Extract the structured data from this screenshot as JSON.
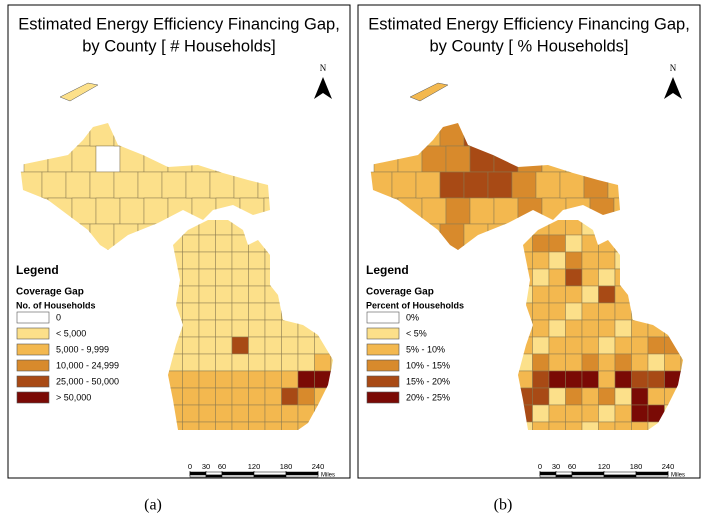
{
  "panels": [
    {
      "title_lines": [
        "Estimated Energy Efficiency Financing Gap,",
        "by County [ # Households]"
      ],
      "north": "N",
      "legend": {
        "title": "Legend",
        "subtitle": "Coverage Gap",
        "heading": "No. of Households",
        "items": [
          {
            "label": "0",
            "color": "#ffffff"
          },
          {
            "label": "< 5,000",
            "color": "#fce08a"
          },
          {
            "label": "5,000 - 9,999",
            "color": "#f3b84f"
          },
          {
            "label": "10,000 - 24,999",
            "color": "#d88a2c"
          },
          {
            "label": "25,000 - 50,000",
            "color": "#a84a15"
          },
          {
            "label": "> 50,000",
            "color": "#7a0a05"
          }
        ]
      },
      "scale": {
        "ticks": [
          0,
          30,
          60,
          120,
          180,
          240
        ],
        "unit": "Miles"
      },
      "caption": "(a)"
    },
    {
      "title_lines": [
        "Estimated Energy Efficiency Financing Gap,",
        "by County [ % Households]"
      ],
      "north": "N",
      "legend": {
        "title": "Legend",
        "subtitle": "Coverage Gap",
        "heading": "Percent of Households",
        "items": [
          {
            "label": "0%",
            "color": "#ffffff"
          },
          {
            "label": "< 5%",
            "color": "#fce08a"
          },
          {
            "label": "5% - 10%",
            "color": "#f3b84f"
          },
          {
            "label": "10% - 15%",
            "color": "#d88a2c"
          },
          {
            "label": "15% - 20%",
            "color": "#a84a15"
          },
          {
            "label": "20% - 25%",
            "color": "#7a0a05"
          }
        ]
      },
      "scale": {
        "ticks": [
          0,
          30,
          60,
          120,
          180,
          240
        ],
        "unit": "Miles"
      },
      "caption": "(b)"
    }
  ]
}
